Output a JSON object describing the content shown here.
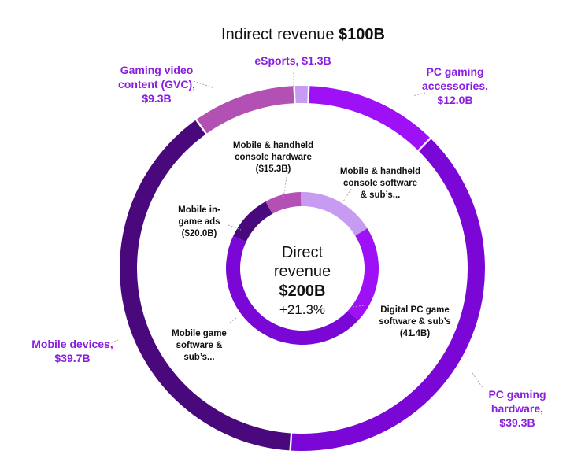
{
  "chart_data": [
    {
      "type": "pie",
      "variant": "donut",
      "ring": "outer",
      "title_prefix": "Indirect revenue ",
      "title_value": "$100B",
      "categories": [
        "eSports",
        "PC gaming accessories",
        "PC gaming hardware",
        "Mobile devices",
        "Gaming video content (GVC)"
      ],
      "values": [
        1.3,
        12.0,
        39.3,
        39.7,
        9.3
      ],
      "labels": [
        [
          "eSports, $1.3B"
        ],
        [
          "PC gaming",
          "accessories,",
          "$12.0B"
        ],
        [
          "PC gaming",
          "hardware,",
          "$39.3B"
        ],
        [
          "Mobile devices,",
          "$39.7B"
        ],
        [
          "Gaming video",
          "content (GVC),",
          "$9.3B"
        ]
      ],
      "colors": [
        "#c79bf2",
        "#9e10f5",
        "#7b07d6",
        "#4a087d",
        "#b350b4"
      ]
    },
    {
      "type": "pie",
      "variant": "donut",
      "ring": "inner",
      "center_line1": "Direct",
      "center_line2": "revenue",
      "center_value": "$200B",
      "center_growth": "+21.3%",
      "categories": [
        "Mobile & handheld console software & sub's...",
        "Digital PC game software & sub's",
        "Mobile game software & sub's...",
        "Mobile in-game ads",
        "Mobile & handheld console hardware"
      ],
      "values": [
        33.0,
        41.4,
        90.0,
        20.0,
        15.3
      ],
      "labels": [
        [
          "Mobile & handheld",
          "console software",
          "& sub’s..."
        ],
        [
          "Digital PC game",
          "software & sub’s",
          "(41.4B)"
        ],
        [
          "Mobile game",
          "software &",
          "sub’s..."
        ],
        [
          "Mobile in-",
          "game ads",
          "($20.0B)"
        ],
        [
          "Mobile & handheld",
          "console hardware",
          "($15.3B)"
        ]
      ],
      "colors": [
        "#c79bf2",
        "#9e10f5",
        "#7b07d6",
        "#4a087d",
        "#b350b4"
      ]
    }
  ]
}
